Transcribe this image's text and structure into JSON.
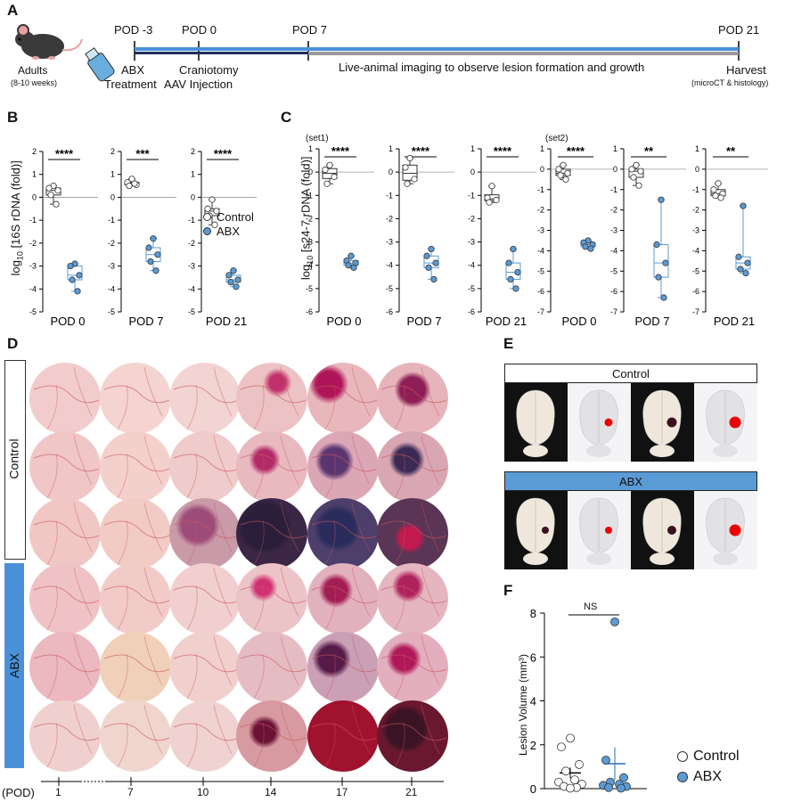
{
  "panels": {
    "a": "A",
    "b": "B",
    "c": "C",
    "d": "D",
    "e": "E",
    "f": "F"
  },
  "timeline": {
    "mouse_label": "Adults",
    "mouse_sub": "(8-10 weeks)",
    "points": [
      "POD -3",
      "POD 0",
      "POD 7",
      "POD 21"
    ],
    "abx1": "ABX",
    "abx2": "Treatment",
    "cranio1": "Craniotomy",
    "cranio2": "AAV Injection",
    "imaging": "Live-animal imaging to observe lesion formation and growth",
    "harvest": "Harvest",
    "harvest_sub": "(microCT & histology)"
  },
  "panel_b": {
    "ylabel_prefix": "log",
    "ylabel_sub": "10",
    "ylabel_rest": "[16S rDNA (fold)]",
    "legend": {
      "control": "Control",
      "abx": "ABX"
    }
  },
  "panel_c": {
    "ylabel_prefix": "log",
    "ylabel_sub": "10",
    "ylabel_rest": "[s24-7 rDNA (fold)]",
    "set1": "(set1)",
    "set2": "(set2)"
  },
  "panel_d": {
    "control_label": "Control",
    "abx_label": "ABX",
    "pod_label": "(POD)",
    "days": [
      "1",
      "7",
      "10",
      "14",
      "17",
      "21"
    ]
  },
  "panel_e": {
    "control": "Control",
    "abx": "ABX"
  },
  "panel_f": {
    "ylabel": "Lesion Volume (mm³)",
    "ns": "NS",
    "legend_control": "Control",
    "legend_abx": "ABX"
  },
  "colors": {
    "control": "#ffffff",
    "abx": "#5b9bd5",
    "abx_box": "#5b9bd5",
    "bar_blue": "#4a90d9"
  },
  "chart_data": [
    {
      "type": "box",
      "panel": "B",
      "title": "POD 0",
      "ylim": [
        -5,
        2
      ],
      "significance": "****",
      "series": [
        {
          "name": "Control",
          "values": [
            0.5,
            0.4,
            0.3,
            0.1,
            -0.3
          ]
        },
        {
          "name": "ABX",
          "values": [
            -2.9,
            -3.0,
            -3.4,
            -3.6,
            -4.1
          ]
        }
      ]
    },
    {
      "type": "box",
      "panel": "B",
      "title": "POD 7",
      "ylim": [
        -5,
        2
      ],
      "significance": "***",
      "series": [
        {
          "name": "Control",
          "values": [
            0.8,
            0.65,
            0.55,
            0.5,
            0.6
          ]
        },
        {
          "name": "ABX",
          "values": [
            -1.8,
            -2.2,
            -2.5,
            -2.8,
            -3.2
          ]
        }
      ]
    },
    {
      "type": "box",
      "panel": "B",
      "title": "POD 21",
      "ylim": [
        -5,
        2
      ],
      "significance": "****",
      "series": [
        {
          "name": "Control",
          "values": [
            -0.1,
            -0.5,
            -0.6,
            -0.8,
            -1.2
          ]
        },
        {
          "name": "ABX",
          "values": [
            -3.2,
            -3.4,
            -3.6,
            -3.7,
            -3.9
          ]
        }
      ]
    },
    {
      "type": "box",
      "panel": "C",
      "title": "POD 0",
      "ylim": [
        -6,
        1
      ],
      "significance": "****",
      "series": [
        {
          "name": "Control",
          "values": [
            0.3,
            0.1,
            -0.2,
            -0.5
          ]
        },
        {
          "name": "ABX",
          "values": [
            -3.6,
            -3.8,
            -3.9,
            -4.0,
            -4.1
          ]
        }
      ]
    },
    {
      "type": "box",
      "panel": "C",
      "title": "POD 7",
      "ylim": [
        -6,
        1
      ],
      "significance": "****",
      "series": [
        {
          "name": "Control",
          "values": [
            0.6,
            0.2,
            -0.3,
            -0.5
          ]
        },
        {
          "name": "ABX",
          "values": [
            -3.3,
            -3.6,
            -3.9,
            -4.1,
            -4.6
          ]
        }
      ]
    },
    {
      "type": "box",
      "panel": "C",
      "title": "POD 21",
      "ylim": [
        -6,
        1
      ],
      "significance": "****",
      "series": [
        {
          "name": "Control",
          "values": [
            -0.6,
            -1.1,
            -1.2,
            -1.3
          ]
        },
        {
          "name": "ABX",
          "values": [
            -3.3,
            -3.9,
            -4.3,
            -4.6,
            -5.0
          ]
        }
      ]
    },
    {
      "type": "box",
      "panel": "C",
      "title": "POD 0",
      "ylim": [
        -7,
        1
      ],
      "significance": "****",
      "series": [
        {
          "name": "Control",
          "values": [
            0.2,
            0.0,
            -0.2,
            -0.3,
            -0.5
          ]
        },
        {
          "name": "ABX",
          "values": [
            -3.5,
            -3.6,
            -3.7,
            -3.8,
            -3.9
          ]
        }
      ]
    },
    {
      "type": "box",
      "panel": "C",
      "title": "POD 7",
      "ylim": [
        -7,
        1
      ],
      "significance": "**",
      "series": [
        {
          "name": "Control",
          "values": [
            0.2,
            0.0,
            -0.1,
            -0.4,
            -0.8
          ]
        },
        {
          "name": "ABX",
          "values": [
            -1.5,
            -3.7,
            -4.6,
            -5.3,
            -6.3
          ]
        }
      ]
    },
    {
      "type": "box",
      "panel": "C",
      "title": "POD 21",
      "ylim": [
        -7,
        1
      ],
      "significance": "**",
      "series": [
        {
          "name": "Control",
          "values": [
            -0.7,
            -1.0,
            -1.2,
            -1.3,
            -1.4
          ]
        },
        {
          "name": "ABX",
          "values": [
            -1.8,
            -4.3,
            -4.6,
            -4.9,
            -5.1
          ]
        }
      ]
    },
    {
      "type": "scatter",
      "panel": "F",
      "ylim": [
        0,
        8
      ],
      "significance": "NS",
      "series": [
        {
          "name": "Control",
          "values": [
            2.3,
            1.9,
            1.1,
            0.8,
            0.4,
            0.3,
            0.2,
            0.1,
            0.05,
            0.02
          ]
        },
        {
          "name": "ABX",
          "values": [
            7.6,
            1.3,
            0.5,
            0.3,
            0.2,
            0.15,
            0.1,
            0.05,
            0.02
          ]
        }
      ]
    }
  ]
}
